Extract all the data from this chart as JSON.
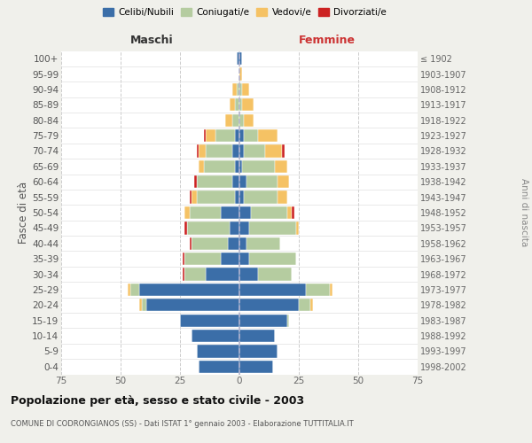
{
  "age_groups": [
    "0-4",
    "5-9",
    "10-14",
    "15-19",
    "20-24",
    "25-29",
    "30-34",
    "35-39",
    "40-44",
    "45-49",
    "50-54",
    "55-59",
    "60-64",
    "65-69",
    "70-74",
    "75-79",
    "80-84",
    "85-89",
    "90-94",
    "95-99",
    "100+"
  ],
  "birth_years": [
    "1998-2002",
    "1993-1997",
    "1988-1992",
    "1983-1987",
    "1978-1982",
    "1973-1977",
    "1968-1972",
    "1963-1967",
    "1958-1962",
    "1953-1957",
    "1948-1952",
    "1943-1947",
    "1938-1942",
    "1933-1937",
    "1928-1932",
    "1923-1927",
    "1918-1922",
    "1913-1917",
    "1908-1912",
    "1903-1907",
    "≤ 1902"
  ],
  "maschi": {
    "celibi": [
      17,
      18,
      20,
      25,
      39,
      42,
      14,
      8,
      5,
      4,
      8,
      2,
      3,
      2,
      3,
      2,
      0,
      0,
      0,
      0,
      1
    ],
    "coniugati": [
      0,
      0,
      0,
      0,
      2,
      4,
      9,
      15,
      15,
      18,
      13,
      16,
      15,
      13,
      11,
      8,
      3,
      2,
      1,
      0,
      0
    ],
    "vedovi": [
      0,
      0,
      0,
      0,
      1,
      1,
      0,
      0,
      0,
      0,
      2,
      2,
      0,
      2,
      3,
      4,
      3,
      2,
      2,
      0,
      0
    ],
    "divorziati": [
      0,
      0,
      0,
      0,
      0,
      0,
      1,
      1,
      1,
      1,
      0,
      1,
      1,
      0,
      1,
      1,
      0,
      0,
      0,
      0,
      0
    ]
  },
  "femmine": {
    "nubili": [
      14,
      16,
      15,
      20,
      25,
      28,
      8,
      4,
      3,
      4,
      5,
      2,
      3,
      1,
      2,
      2,
      0,
      0,
      0,
      0,
      1
    ],
    "coniugate": [
      0,
      0,
      0,
      1,
      5,
      10,
      14,
      20,
      14,
      20,
      15,
      14,
      13,
      14,
      9,
      6,
      2,
      1,
      1,
      0,
      0
    ],
    "vedove": [
      0,
      0,
      0,
      0,
      1,
      1,
      0,
      0,
      0,
      1,
      2,
      4,
      5,
      5,
      7,
      8,
      4,
      5,
      3,
      1,
      0
    ],
    "divorziate": [
      0,
      0,
      0,
      0,
      0,
      0,
      0,
      0,
      0,
      0,
      1,
      0,
      0,
      0,
      1,
      0,
      0,
      0,
      0,
      0,
      0
    ]
  },
  "colors": {
    "celibi_nubili": "#3b6ea8",
    "coniugati": "#b5cca0",
    "vedovi": "#f5c264",
    "divorziati": "#cc2222"
  },
  "xlim": 75,
  "title": "Popolazione per età, sesso e stato civile - 2003",
  "subtitle": "COMUNE DI CODRONGIANOS (SS) - Dati ISTAT 1° gennaio 2003 - Elaborazione TUTTITALIA.IT",
  "ylabel_left": "Fasce di età",
  "ylabel_right": "Anni di nascita",
  "xlabel_maschi": "Maschi",
  "xlabel_femmine": "Femmine",
  "bg_color": "#f0f0eb",
  "plot_bg": "#ffffff"
}
